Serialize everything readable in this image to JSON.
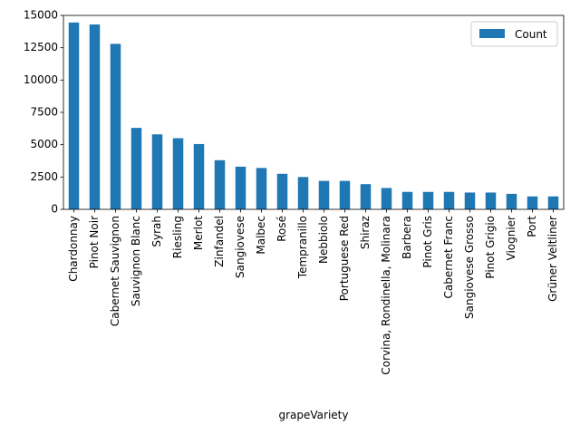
{
  "chart_data": {
    "type": "bar",
    "title": "",
    "xlabel": "grapeVariety",
    "ylabel": "",
    "ylim": [
      0,
      15000
    ],
    "yticks": [
      0,
      2500,
      5000,
      7500,
      10000,
      12500,
      15000
    ],
    "grid": false,
    "legend_position": "top-right",
    "categories": [
      "Chardonnay",
      "Pinot Noir",
      "Cabernet Sauvignon",
      "Sauvignon Blanc",
      "Syrah",
      "Riesling",
      "Merlot",
      "Zinfandel",
      "Sangiovese",
      "Malbec",
      "Rosé",
      "Tempranillo",
      "Nebbiolo",
      "Portuguese Red",
      "Shiraz",
      "Corvina, Rondinella, Molinara",
      "Barbera",
      "Pinot Gris",
      "Cabernet Franc",
      "Sangiovese Grosso",
      "Pinot Grigio",
      "Viognier",
      "Port",
      "Grüner Veltliner"
    ],
    "series": [
      {
        "name": "Count",
        "color": "#1f77b4",
        "values": [
          14450,
          14300,
          12800,
          6300,
          5800,
          5500,
          5050,
          3800,
          3300,
          3200,
          2750,
          2500,
          2200,
          2200,
          1950,
          1650,
          1350,
          1350,
          1350,
          1300,
          1300,
          1200,
          1000,
          1000
        ]
      }
    ]
  }
}
